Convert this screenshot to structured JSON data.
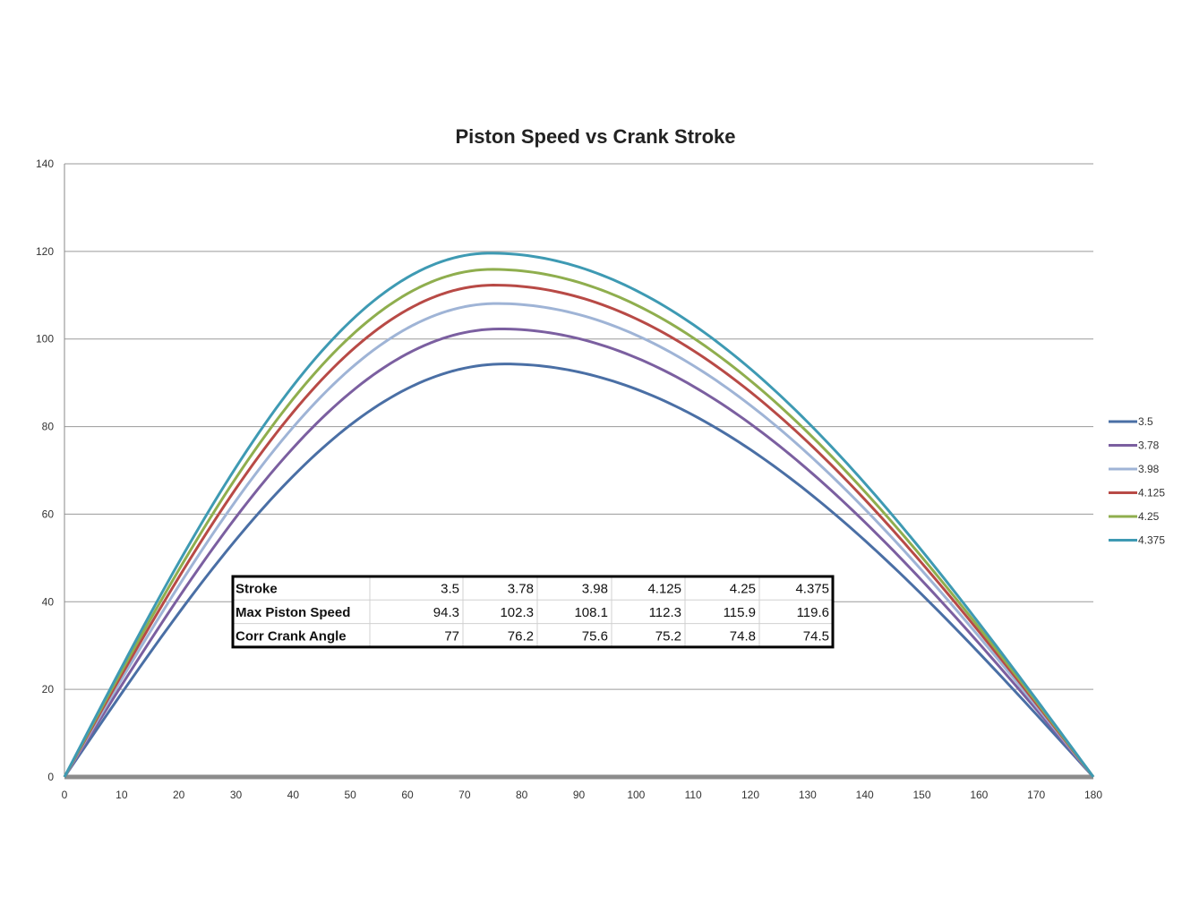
{
  "chart_data": {
    "type": "line",
    "title": "Piston Speed vs Crank Stroke",
    "xlabel": "",
    "ylabel": "",
    "xlim": [
      0,
      180
    ],
    "ylim": [
      0,
      140
    ],
    "xticks": [
      "0",
      "10",
      "20",
      "30",
      "40",
      "50",
      "60",
      "70",
      "80",
      "90",
      "100",
      "110",
      "120",
      "130",
      "140",
      "150",
      "160",
      "170",
      "180"
    ],
    "yticks": [
      "0",
      "20",
      "40",
      "60",
      "80",
      "100",
      "120",
      "140"
    ],
    "grid": true,
    "legend_position": "right",
    "series": [
      {
        "name": "3.5",
        "color": "#4a6fa5",
        "peak_x": 77,
        "peak_y": 94.3
      },
      {
        "name": "3.78",
        "color": "#7b5fa0",
        "peak_x": 76.2,
        "peak_y": 102.3
      },
      {
        "name": "3.98",
        "color": "#9fb4d6",
        "peak_x": 75.6,
        "peak_y": 108.1
      },
      {
        "name": "4.125",
        "color": "#b84a46",
        "peak_x": 75.2,
        "peak_y": 112.3
      },
      {
        "name": "4.25",
        "color": "#8fae4e",
        "peak_x": 74.8,
        "peak_y": 115.9
      },
      {
        "name": "4.375",
        "color": "#3e9ab3",
        "peak_x": 74.5,
        "peak_y": 119.6
      }
    ],
    "table": {
      "rows": [
        [
          "Stroke",
          "3.5",
          "3.78",
          "3.98",
          "4.125",
          "4.25",
          "4.375"
        ],
        [
          "Max Piston Speed",
          "94.3",
          "102.3",
          "108.1",
          "112.3",
          "115.9",
          "119.6"
        ],
        [
          "Corr Crank Angle",
          "77",
          "76.2",
          "75.6",
          "75.2",
          "74.8",
          "74.5"
        ]
      ]
    }
  }
}
